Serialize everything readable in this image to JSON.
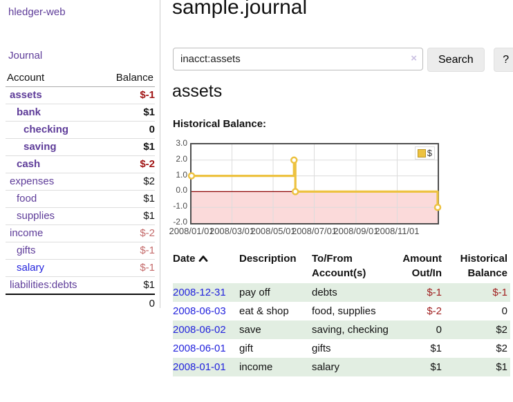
{
  "colors": {
    "brand_purple": "#5e3c99",
    "link_blue": "#2323dd",
    "negative_strong": "#a01414",
    "negative_soft": "#c46a6a",
    "table_negative": "#a02020",
    "row_green": "#e2eee2",
    "series_gold": "#edc240",
    "negative_region_pink": "#fbdada",
    "zero_line_red": "#8b0000"
  },
  "sidebar": {
    "brand": "hledger-web",
    "journal_label": "Journal",
    "accounts_table": {
      "headers": [
        "Account",
        "Balance"
      ],
      "rows": [
        {
          "account": "assets",
          "indent": 1,
          "bold": true,
          "balance": "$-1",
          "balance_style": "neg-strong"
        },
        {
          "account": "bank",
          "indent": 2,
          "bold": true,
          "balance": "$1",
          "balance_style": "pos"
        },
        {
          "account": "checking",
          "indent": 3,
          "bold": true,
          "balance": "0",
          "balance_style": "pos"
        },
        {
          "account": "saving",
          "indent": 3,
          "bold": true,
          "balance": "$1",
          "balance_style": "pos"
        },
        {
          "account": "cash",
          "indent": 2,
          "bold": true,
          "balance": "$-2",
          "balance_style": "neg-strong"
        },
        {
          "account": "expenses",
          "indent": 1,
          "bold": false,
          "balance": "$2",
          "balance_style": "pos"
        },
        {
          "account": "food",
          "indent": 2,
          "bold": false,
          "balance": "$1",
          "balance_style": "pos"
        },
        {
          "account": "supplies",
          "indent": 2,
          "bold": false,
          "balance": "$1",
          "balance_style": "pos"
        },
        {
          "account": "income",
          "indent": 1,
          "bold": false,
          "balance": "$-2",
          "balance_style": "neg-soft"
        },
        {
          "account": "gifts",
          "indent": 2,
          "bold": false,
          "balance": "$-1",
          "balance_style": "neg-soft"
        },
        {
          "account": "salary",
          "indent": 2,
          "bold": false,
          "balance": "$-1",
          "balance_style": "neg-soft",
          "link_color": "blue"
        },
        {
          "account": "liabilities:debts",
          "indent": 1,
          "bold": false,
          "balance": "$1",
          "balance_style": "pos"
        }
      ],
      "total": "0"
    }
  },
  "main": {
    "title": "sample.journal",
    "search": {
      "value": "inacct:assets",
      "clear_icon": "×",
      "button_label": "Search",
      "help_label": "?"
    },
    "heading": "assets",
    "register_table": {
      "headers": [
        {
          "line1": "Date",
          "line2": "",
          "sort": "ascending"
        },
        {
          "line1": "Description",
          "line2": ""
        },
        {
          "line1": "To/From",
          "line2": "Account(s)"
        },
        {
          "line1": "Amount",
          "line2": "Out/In"
        },
        {
          "line1": "Historical",
          "line2": "Balance"
        }
      ],
      "rows": [
        {
          "date": "2008-12-31",
          "description": "pay off",
          "accounts": "debts",
          "amount": "$-1",
          "balance": "$-1"
        },
        {
          "date": "2008-06-03",
          "description": "eat & shop",
          "accounts": "food, supplies",
          "amount": "$-2",
          "balance": "0"
        },
        {
          "date": "2008-06-02",
          "description": "save",
          "accounts": "saving, checking",
          "amount": "0",
          "balance": "$2"
        },
        {
          "date": "2008-06-01",
          "description": "gift",
          "accounts": "gifts",
          "amount": "$1",
          "balance": "$2"
        },
        {
          "date": "2008-01-01",
          "description": "income",
          "accounts": "salary",
          "amount": "$1",
          "balance": "$1"
        }
      ]
    }
  },
  "chart_data": {
    "type": "line",
    "title": "Historical Balance:",
    "legend": "$",
    "legend_position": "top-right",
    "grid": true,
    "step": true,
    "series": [
      {
        "name": "$",
        "color": "#edc240",
        "points": [
          [
            "2008-01-01",
            1
          ],
          [
            "2008-06-01",
            2
          ],
          [
            "2008-06-03",
            0
          ],
          [
            "2008-12-31",
            -1
          ]
        ]
      }
    ],
    "x_range": [
      "2008-01-01",
      "2008-12-31"
    ],
    "x_ticks": [
      "2008-01-01",
      "2008-03-01",
      "2008-05-01",
      "2008-07-01",
      "2008-09-01",
      "2008-11-01"
    ],
    "x_tick_labels": [
      "2008/01/01",
      "2008/03/01",
      "2008/05/01",
      "2008/07/01",
      "2008/09/01",
      "2008/11/01"
    ],
    "y_ticks": [
      3.0,
      2.0,
      1.0,
      0.0,
      -1.0,
      -2.0
    ],
    "ylim": [
      -2,
      3
    ],
    "negative_fill": "#fbdada",
    "zero_line_color": "#8b0000"
  }
}
